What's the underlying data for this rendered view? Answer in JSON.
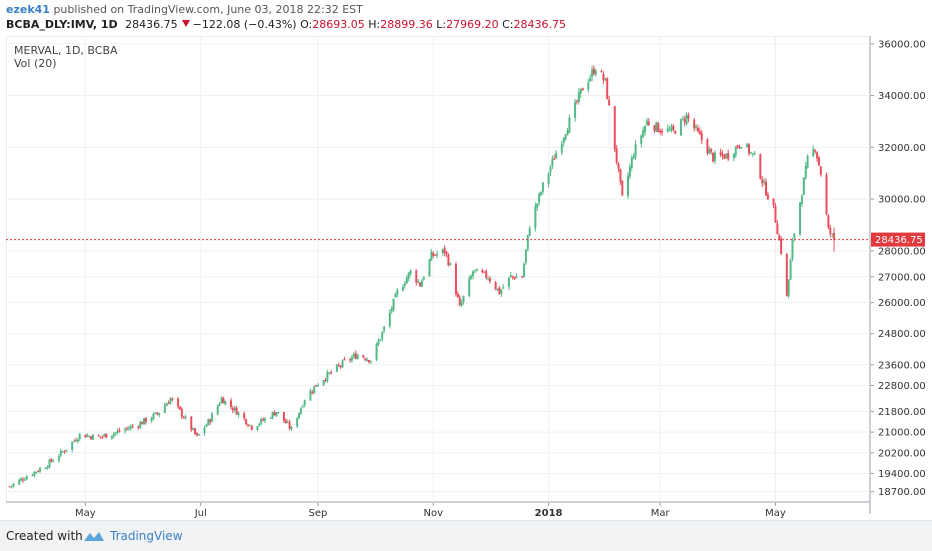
{
  "header": {
    "author": "ezek41",
    "published": "published on TradingView.com, June 03, 2018 22:32 EST",
    "symbol": "BCBA_DLY:IMV, 1D",
    "last": "28436.75",
    "change": "−122.08 (−0.43%)",
    "o_label": "O:",
    "o_value": "28693.05",
    "h_label": "H:",
    "h_value": "28899.36",
    "l_label": "L:",
    "l_value": "27969.20",
    "c_label": "C:",
    "c_value": "28436.75"
  },
  "pane": {
    "title": "MERVAL, 1D, BCBA",
    "indicator": "Vol (20)"
  },
  "footer": {
    "created": "Created with",
    "brand": "TradingView"
  },
  "colors": {
    "up": "#53b987",
    "down": "#eb4d5c",
    "last_price_line": "#e0393e",
    "grid": "#eef0f3",
    "axis_text": "#333333"
  },
  "chart_data": {
    "type": "candlestick",
    "title": "MERVAL, 1D, BCBA",
    "ylim": [
      18300,
      36300
    ],
    "y_ticks": [
      18700,
      19400,
      20200,
      21000,
      21800,
      22800,
      23600,
      24800,
      26000,
      27000,
      28000,
      30000,
      32000,
      34000,
      36000
    ],
    "y_tick_labels": [
      "18700.00",
      "19400.00",
      "20200.00",
      "21000.00",
      "21800.00",
      "22800.00",
      "23600.00",
      "24800.00",
      "26000.00",
      "27000.00",
      "28000.00",
      "30000.00",
      "32000.00",
      "34000.00",
      "36000.00"
    ],
    "x_range": [
      "2017-03-20",
      "2018-06-20"
    ],
    "x_ticks": [
      {
        "date": "2017-05-01",
        "label": "May"
      },
      {
        "date": "2017-07-01",
        "label": "Jul"
      },
      {
        "date": "2017-09-01",
        "label": "Sep"
      },
      {
        "date": "2017-11-01",
        "label": "Nov"
      },
      {
        "date": "2018-01-01",
        "label": "2018"
      },
      {
        "date": "2018-03-01",
        "label": "Mar"
      },
      {
        "date": "2018-05-01",
        "label": "May"
      }
    ],
    "last_price": 28436.75,
    "last_price_label": "28436.75",
    "closes": [
      {
        "date": "2017-03-22",
        "close": 18900
      },
      {
        "date": "2017-03-31",
        "close": 19300
      },
      {
        "date": "2017-04-10",
        "close": 19700
      },
      {
        "date": "2017-04-20",
        "close": 20300
      },
      {
        "date": "2017-04-28",
        "close": 20900
      },
      {
        "date": "2017-05-08",
        "close": 20800
      },
      {
        "date": "2017-05-18",
        "close": 21000
      },
      {
        "date": "2017-05-29",
        "close": 21300
      },
      {
        "date": "2017-06-08",
        "close": 21700
      },
      {
        "date": "2017-06-15",
        "close": 22300
      },
      {
        "date": "2017-06-22",
        "close": 21600
      },
      {
        "date": "2017-06-29",
        "close": 20800
      },
      {
        "date": "2017-07-06",
        "close": 21500
      },
      {
        "date": "2017-07-12",
        "close": 22300
      },
      {
        "date": "2017-07-20",
        "close": 21800
      },
      {
        "date": "2017-07-28",
        "close": 21200
      },
      {
        "date": "2017-08-04",
        "close": 21500
      },
      {
        "date": "2017-08-10",
        "close": 21800
      },
      {
        "date": "2017-08-18",
        "close": 21100
      },
      {
        "date": "2017-08-25",
        "close": 22300
      },
      {
        "date": "2017-09-01",
        "close": 22900
      },
      {
        "date": "2017-09-08",
        "close": 23300
      },
      {
        "date": "2017-09-15",
        "close": 23700
      },
      {
        "date": "2017-09-22",
        "close": 24000
      },
      {
        "date": "2017-09-29",
        "close": 23800
      },
      {
        "date": "2017-10-06",
        "close": 25000
      },
      {
        "date": "2017-10-13",
        "close": 26400
      },
      {
        "date": "2017-10-20",
        "close": 27200
      },
      {
        "date": "2017-10-25",
        "close": 26700
      },
      {
        "date": "2017-10-31",
        "close": 27800
      },
      {
        "date": "2017-11-07",
        "close": 28000
      },
      {
        "date": "2017-11-10",
        "close": 27400
      },
      {
        "date": "2017-11-15",
        "close": 25800
      },
      {
        "date": "2017-11-22",
        "close": 27200
      },
      {
        "date": "2017-11-30",
        "close": 27000
      },
      {
        "date": "2017-12-06",
        "close": 26400
      },
      {
        "date": "2017-12-12",
        "close": 27000
      },
      {
        "date": "2017-12-18",
        "close": 27000
      },
      {
        "date": "2017-12-22",
        "close": 29000
      },
      {
        "date": "2017-12-29",
        "close": 30500
      },
      {
        "date": "2018-01-05",
        "close": 31800
      },
      {
        "date": "2018-01-12",
        "close": 33000
      },
      {
        "date": "2018-01-19",
        "close": 34300
      },
      {
        "date": "2018-01-26",
        "close": 35100
      },
      {
        "date": "2018-01-31",
        "close": 34500
      },
      {
        "date": "2018-02-05",
        "close": 32000
      },
      {
        "date": "2018-02-09",
        "close": 30000
      },
      {
        "date": "2018-02-15",
        "close": 31800
      },
      {
        "date": "2018-02-22",
        "close": 33000
      },
      {
        "date": "2018-03-01",
        "close": 32700
      },
      {
        "date": "2018-03-08",
        "close": 32600
      },
      {
        "date": "2018-03-15",
        "close": 33200
      },
      {
        "date": "2018-03-22",
        "close": 32400
      },
      {
        "date": "2018-03-29",
        "close": 31600
      },
      {
        "date": "2018-04-06",
        "close": 31700
      },
      {
        "date": "2018-04-13",
        "close": 32200
      },
      {
        "date": "2018-04-20",
        "close": 31600
      },
      {
        "date": "2018-04-25",
        "close": 30500
      },
      {
        "date": "2018-04-30",
        "close": 29600
      },
      {
        "date": "2018-05-04",
        "close": 28000
      },
      {
        "date": "2018-05-07",
        "close": 26200
      },
      {
        "date": "2018-05-10",
        "close": 28300
      },
      {
        "date": "2018-05-15",
        "close": 30300
      },
      {
        "date": "2018-05-18",
        "close": 31500
      },
      {
        "date": "2018-05-22",
        "close": 32000
      },
      {
        "date": "2018-05-25",
        "close": 31000
      },
      {
        "date": "2018-05-29",
        "close": 28800
      },
      {
        "date": "2018-06-01",
        "close": 28436.75
      }
    ]
  }
}
